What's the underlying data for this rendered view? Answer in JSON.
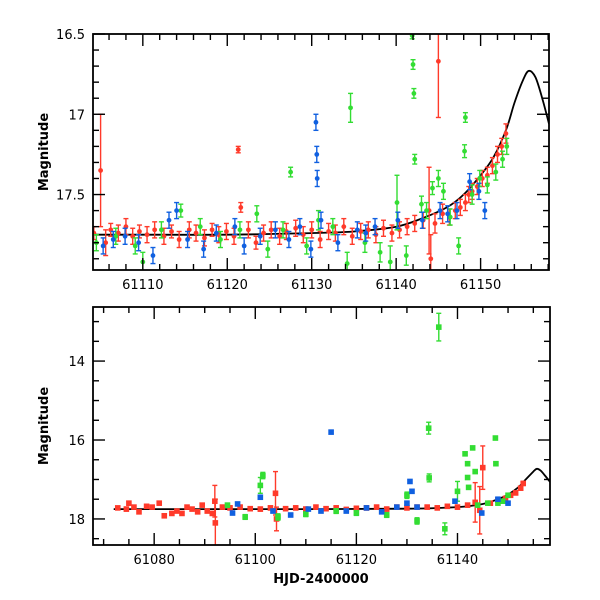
{
  "chart_data": [
    {
      "type": "scatter",
      "panel": "top",
      "title": "",
      "xlabel": "",
      "ylabel": "Magnitude",
      "xlim": [
        61104.1,
        61158.1
      ],
      "ylim": [
        16.5,
        17.97
      ],
      "y_inverted": true,
      "xticks": [
        61110,
        61120,
        61130,
        61140,
        61150
      ],
      "xtick_labels": [
        "61110",
        "61120",
        "61130",
        "61140",
        "61150"
      ],
      "yticks": [
        16.5,
        17,
        17.5
      ],
      "ytick_labels": [
        "16.5",
        "17",
        "17.5"
      ],
      "grid": false,
      "legend": "none",
      "model_curve": {
        "name": "model",
        "color": "#000000",
        "x": [
          61104.1,
          61110,
          61120,
          61130,
          61135,
          61140,
          61143,
          61146,
          61148,
          61150,
          61151.5,
          61153,
          61154,
          61155,
          61155.7,
          61156.5,
          61157.3,
          61158.1
        ],
        "y": [
          17.75,
          17.75,
          17.75,
          17.74,
          17.73,
          17.7,
          17.65,
          17.58,
          17.5,
          17.38,
          17.27,
          17.1,
          16.93,
          16.79,
          16.73,
          16.77,
          16.9,
          17.06
        ]
      },
      "series": [
        {
          "name": "red",
          "color": "#ff3a2a",
          "x": [
            61104.2,
            61105.0,
            61105.6,
            61106.2,
            61107.1,
            61108.0,
            61108.8,
            61109.6,
            61110.5,
            61111.4,
            61112.5,
            61113.4,
            61114.3,
            61115.5,
            61116.3,
            61117.3,
            61118.2,
            61119.0,
            61119.9,
            61120.8,
            61121.3,
            61121.6,
            61122.5,
            61123.4,
            61124.3,
            61125.2,
            61126.2,
            61127.0,
            61128.1,
            61129.0,
            61130.0,
            61131.0,
            61132.0,
            61132.8,
            61133.8,
            61134.8,
            61135.8,
            61136.7,
            61137.6,
            61138.5,
            61139.5,
            61140.4,
            61141.3,
            61142.2,
            61143.2,
            61143.9,
            61144.1,
            61144.6,
            61145.0,
            61145.5,
            61146.3,
            61147.0,
            61147.6,
            61148.2,
            61148.6,
            61149.0,
            61149.6,
            61150.2,
            61150.8,
            61151.4,
            61152.0,
            61152.5,
            61153.0
          ],
          "y": [
            17.74,
            17.35,
            17.8,
            17.72,
            17.74,
            17.7,
            17.76,
            17.73,
            17.75,
            17.72,
            17.76,
            17.73,
            17.78,
            17.72,
            17.74,
            17.77,
            17.72,
            17.75,
            17.73,
            17.76,
            17.22,
            17.58,
            17.72,
            17.8,
            17.74,
            17.72,
            17.76,
            17.73,
            17.71,
            17.75,
            17.72,
            17.78,
            17.73,
            17.74,
            17.7,
            17.76,
            17.73,
            17.72,
            17.75,
            17.71,
            17.74,
            17.72,
            17.7,
            17.68,
            17.66,
            17.6,
            17.9,
            17.68,
            16.67,
            17.62,
            17.64,
            17.6,
            17.58,
            17.55,
            17.5,
            17.48,
            17.45,
            17.4,
            17.38,
            17.32,
            17.25,
            17.2,
            17.12
          ],
          "err": [
            0.04,
            0.35,
            0.08,
            0.04,
            0.05,
            0.05,
            0.05,
            0.04,
            0.05,
            0.05,
            0.05,
            0.04,
            0.05,
            0.05,
            0.05,
            0.05,
            0.04,
            0.05,
            0.05,
            0.05,
            0.02,
            0.03,
            0.05,
            0.04,
            0.05,
            0.05,
            0.05,
            0.05,
            0.05,
            0.05,
            0.05,
            0.05,
            0.05,
            0.05,
            0.05,
            0.05,
            0.05,
            0.05,
            0.05,
            0.05,
            0.05,
            0.05,
            0.05,
            0.05,
            0.05,
            0.27,
            0.15,
            0.06,
            0.35,
            0.06,
            0.05,
            0.05,
            0.05,
            0.05,
            0.05,
            0.05,
            0.05,
            0.05,
            0.05,
            0.05,
            0.05,
            0.05,
            0.06
          ]
        },
        {
          "name": "green",
          "color": "#33dd33",
          "x": [
            61104.5,
            61106.8,
            61109.1,
            61110.0,
            61112.2,
            61114.5,
            61116.8,
            61119.2,
            61121.5,
            61123.5,
            61124.8,
            61126.6,
            61127.5,
            61129.4,
            61130.8,
            61132.5,
            61134.2,
            61134.6,
            61136.3,
            61138.1,
            61139.3,
            61140.1,
            61141.2,
            61141.9,
            61142.0,
            61142.1,
            61142.2,
            61143.0,
            61143.6,
            61144.3,
            61145.0,
            61145.6,
            61146.4,
            61147.4,
            61148.1,
            61148.2,
            61149.0,
            61149.9,
            61150.8,
            61151.8,
            61152.6,
            61153.1
          ],
          "y": [
            17.8,
            17.76,
            17.82,
            17.92,
            17.72,
            17.6,
            17.7,
            17.78,
            17.72,
            17.62,
            17.84,
            17.72,
            17.36,
            17.82,
            17.66,
            17.7,
            17.93,
            16.96,
            17.8,
            17.86,
            17.92,
            17.55,
            17.88,
            16.51,
            16.69,
            16.87,
            17.28,
            17.56,
            17.6,
            17.46,
            17.4,
            17.48,
            17.64,
            17.82,
            17.23,
            17.02,
            17.5,
            17.4,
            17.44,
            17.36,
            17.28,
            17.2
          ],
          "err": [
            0.05,
            0.05,
            0.05,
            0.06,
            0.05,
            0.04,
            0.05,
            0.05,
            0.05,
            0.05,
            0.05,
            0.05,
            0.03,
            0.05,
            0.06,
            0.05,
            0.07,
            0.09,
            0.06,
            0.06,
            0.1,
            0.17,
            0.06,
            0.02,
            0.03,
            0.03,
            0.03,
            0.05,
            0.05,
            0.04,
            0.05,
            0.05,
            0.05,
            0.05,
            0.04,
            0.03,
            0.06,
            0.05,
            0.05,
            0.05,
            0.05,
            0.05
          ]
        },
        {
          "name": "blue",
          "color": "#1060e0",
          "x": [
            61105.3,
            61106.5,
            61107.9,
            61109.5,
            61111.2,
            61113.1,
            61114.0,
            61115.3,
            61117.2,
            61118.7,
            61120.9,
            61122.0,
            61123.9,
            61125.7,
            61127.3,
            61128.6,
            61129.9,
            61130.5,
            61130.6,
            61130.65,
            61131.1,
            61133.1,
            61135.4,
            61136.4,
            61137.5,
            61140.2,
            61143.1,
            61145.2,
            61146.1,
            61147.2,
            61148.7,
            61149.8,
            61150.5
          ],
          "y": [
            17.82,
            17.78,
            17.76,
            17.8,
            17.88,
            17.66,
            17.6,
            17.78,
            17.84,
            17.74,
            17.7,
            17.82,
            17.76,
            17.72,
            17.78,
            17.7,
            17.84,
            17.05,
            17.25,
            17.4,
            17.66,
            17.8,
            17.72,
            17.74,
            17.7,
            17.66,
            17.66,
            17.6,
            17.62,
            17.6,
            17.42,
            17.48,
            17.6
          ]
        }
      ]
    },
    {
      "type": "scatter",
      "panel": "bottom",
      "title": "",
      "xlabel": "HJD-2400000",
      "ylabel": "Magnitude",
      "xlim": [
        61067.9,
        61158.3
      ],
      "ylim": [
        12.63,
        18.66
      ],
      "y_inverted": true,
      "xticks": [
        61080,
        61100,
        61120,
        61140
      ],
      "xtick_labels": [
        "61080",
        "61100",
        "61120",
        "61140"
      ],
      "yticks": [
        14,
        16,
        18
      ],
      "ytick_labels": [
        "14",
        "16",
        "18"
      ],
      "grid": false,
      "legend": "none",
      "model_curve": {
        "name": "model",
        "color": "#000000",
        "x": [
          61072,
          61090,
          61110,
          61130,
          61140,
          61145,
          61148,
          61150,
          61152,
          61153.5,
          61155,
          61155.7,
          61156.5,
          61157.3,
          61158.3
        ],
        "y": [
          17.75,
          17.75,
          17.75,
          17.74,
          17.7,
          17.62,
          17.5,
          17.38,
          17.2,
          17.0,
          16.8,
          16.73,
          16.78,
          16.9,
          17.06
        ]
      },
      "series": [
        {
          "name": "red",
          "color": "#ff3a2a",
          "x": [
            61072.8,
            61074.5,
            61075.0,
            61076.0,
            61077.0,
            61078.5,
            61079.6,
            61081.0,
            61082.0,
            61083.5,
            61084.5,
            61085.5,
            61086.5,
            61087.5,
            61088.6,
            61089.5,
            61090.5,
            61091.5,
            61092.0,
            61092.1,
            61093.5,
            61095.0,
            61097.0,
            61099.0,
            61101.0,
            61103.0,
            61104.0,
            61104.2,
            61106.0,
            61108.0,
            61110.0,
            61112.0,
            61114.0,
            61116.0,
            61118.0,
            61120.0,
            61122.0,
            61124.0,
            61126.0,
            61128.0,
            61130.0,
            61132.0,
            61134.0,
            61136.0,
            61138.0,
            61140.0,
            61142.0,
            61143.5,
            61144.4,
            61145.0,
            61146.5,
            61148.0,
            61149.5,
            61150.5,
            61151.5,
            61152.5,
            61153.0
          ],
          "y": [
            17.72,
            17.75,
            17.6,
            17.7,
            17.82,
            17.68,
            17.7,
            17.6,
            17.92,
            17.86,
            17.8,
            17.86,
            17.7,
            17.75,
            17.82,
            17.65,
            17.8,
            17.86,
            17.55,
            18.1,
            17.7,
            17.72,
            17.7,
            17.74,
            17.75,
            17.72,
            17.35,
            18.0,
            17.74,
            17.72,
            17.75,
            17.7,
            17.74,
            17.72,
            17.76,
            17.73,
            17.72,
            17.7,
            17.75,
            17.7,
            17.72,
            17.7,
            17.7,
            17.72,
            17.68,
            17.7,
            17.65,
            17.58,
            17.78,
            16.7,
            17.6,
            17.52,
            17.48,
            17.4,
            17.34,
            17.22,
            17.1
          ],
          "err": [
            0.04,
            0.05,
            0.05,
            0.04,
            0.04,
            0.05,
            0.04,
            0.04,
            0.04,
            0.04,
            0.04,
            0.04,
            0.04,
            0.04,
            0.04,
            0.04,
            0.04,
            0.04,
            0.4,
            0.6,
            0.05,
            0.05,
            0.05,
            0.05,
            0.05,
            0.05,
            0.55,
            0.3,
            0.05,
            0.05,
            0.05,
            0.05,
            0.05,
            0.05,
            0.05,
            0.05,
            0.05,
            0.05,
            0.05,
            0.05,
            0.05,
            0.05,
            0.05,
            0.05,
            0.05,
            0.05,
            0.05,
            0.5,
            0.6,
            0.55,
            0.05,
            0.05,
            0.05,
            0.05,
            0.05,
            0.05,
            0.05
          ]
        },
        {
          "name": "green",
          "color": "#33dd33",
          "x": [
            61094.5,
            61098.0,
            61101.0,
            61101.5,
            61104.5,
            61110.0,
            61116.0,
            61120.0,
            61126.0,
            61130.0,
            61132.0,
            61134.3,
            61134.4,
            61136.3,
            61137.5,
            61140.0,
            61141.5,
            61142.0,
            61142.0,
            61142.2,
            61143.0,
            61143.5,
            61144.0,
            61146.0,
            61147.5,
            61147.6,
            61148.0,
            61149.0,
            61150.0
          ],
          "y": [
            17.65,
            17.95,
            17.15,
            16.9,
            17.95,
            17.88,
            17.8,
            17.85,
            17.9,
            17.4,
            18.05,
            15.7,
            16.96,
            13.14,
            18.25,
            17.3,
            16.35,
            16.6,
            16.95,
            17.2,
            16.2,
            16.8,
            17.65,
            17.6,
            15.95,
            16.6,
            17.6,
            17.55,
            17.4
          ],
          "err": [
            0.05,
            0.06,
            0.2,
            0.08,
            0.08,
            0.06,
            0.06,
            0.06,
            0.06,
            0.08,
            0.08,
            0.15,
            0.1,
            0.35,
            0.15,
            0.25,
            0.04,
            0.04,
            0.04,
            0.04,
            0.04,
            0.04,
            0.04,
            0.04,
            0.04,
            0.04,
            0.04,
            0.04,
            0.04
          ]
        },
        {
          "name": "blue",
          "color": "#1060e0",
          "x": [
            61095.5,
            61096.5,
            61101.0,
            61103.5,
            61107.0,
            61110.5,
            61113.0,
            61115.0,
            61118.0,
            61122.0,
            61125.0,
            61128.0,
            61130.0,
            61130.6,
            61131.0,
            61132.0,
            61139.5,
            61144.8,
            61148.0,
            61150.0
          ],
          "y": [
            17.85,
            17.62,
            17.45,
            17.8,
            17.9,
            17.75,
            17.8,
            15.8,
            17.8,
            17.72,
            17.82,
            17.7,
            17.6,
            17.05,
            17.3,
            17.7,
            17.55,
            17.85,
            17.5,
            17.6
          ]
        }
      ]
    }
  ]
}
